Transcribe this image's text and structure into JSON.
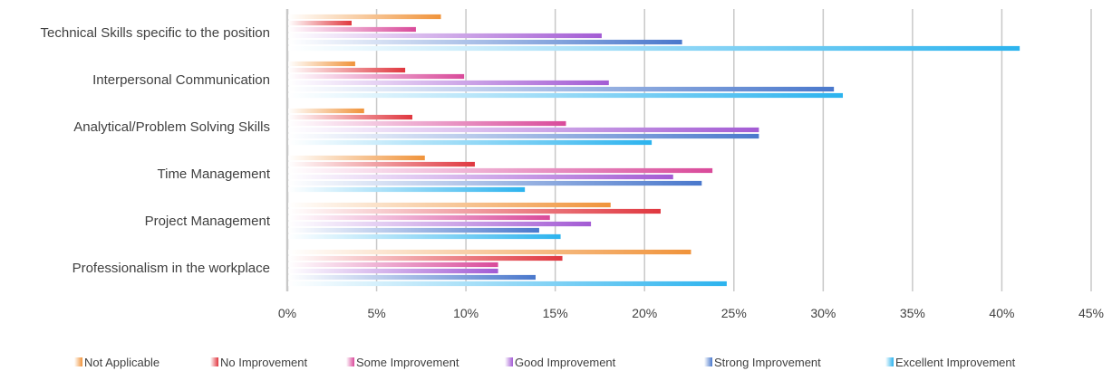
{
  "chart_data": {
    "type": "bar",
    "orientation": "horizontal",
    "categories": [
      "Technical Skills specific to the position",
      "Interpersonal Communication",
      "Analytical/Problem Solving Skills",
      "Time Management",
      "Project Management",
      "Professionalism in the workplace"
    ],
    "series": [
      {
        "name": "Not Applicable",
        "color": "#F0933A",
        "values": [
          8.6,
          3.8,
          4.3,
          7.7,
          18.1,
          22.6
        ]
      },
      {
        "name": "No Improvement",
        "color": "#E0373F",
        "values": [
          3.6,
          6.6,
          7.0,
          10.5,
          20.9,
          15.4
        ]
      },
      {
        "name": "Some Improvement",
        "color": "#D94A9A",
        "values": [
          7.2,
          9.9,
          15.6,
          23.8,
          14.7,
          11.8
        ]
      },
      {
        "name": "Good Improvement",
        "color": "#A35BD4",
        "values": [
          17.6,
          18.0,
          26.4,
          21.6,
          17.0,
          11.8
        ]
      },
      {
        "name": "Strong Improvement",
        "color": "#4A78CC",
        "values": [
          22.1,
          30.6,
          26.4,
          23.2,
          14.1,
          13.9
        ]
      },
      {
        "name": "Excellent Improvement",
        "color": "#2CB3EE",
        "values": [
          41.0,
          31.1,
          20.4,
          13.3,
          15.3,
          24.6
        ]
      }
    ],
    "x_ticks": [
      "0%",
      "5%",
      "10%",
      "15%",
      "20%",
      "25%",
      "30%",
      "35%",
      "40%",
      "45%"
    ],
    "xlim": [
      0,
      45
    ],
    "grid": true,
    "legend_position": "bottom"
  }
}
